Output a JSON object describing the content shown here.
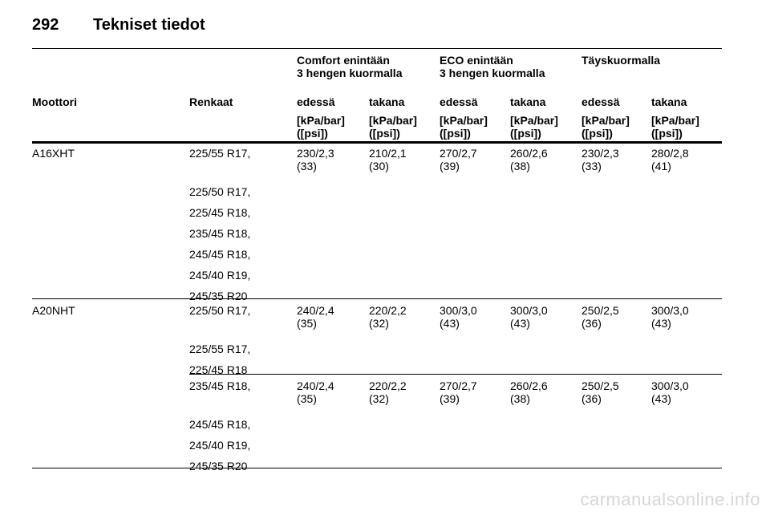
{
  "header": {
    "page_number": "292",
    "title": "Tekniset tiedot"
  },
  "table": {
    "groups": [
      {
        "line1": "Comfort enintään",
        "line2": "3 hengen kuormalla"
      },
      {
        "line1": "ECO enintään",
        "line2": "3 hengen kuormalla"
      },
      {
        "line1": "Täyskuormalla",
        "line2": ""
      }
    ],
    "col_engine": "Moottori",
    "col_tyres": "Renkaat",
    "col_front": "edessä",
    "col_rear": "takana",
    "unit_line1": "[kPa/bar]",
    "unit_line2": "([psi])",
    "rows": [
      {
        "engine": "A16XHT",
        "tyres": [
          "225/55 R17,",
          "225/50 R17,",
          "225/45 R18,",
          "235/45 R18,",
          "245/45 R18,",
          "245/40 R19,",
          "245/35 R20"
        ],
        "values": [
          [
            "230/2,3",
            "(33)"
          ],
          [
            "210/2,1",
            "(30)"
          ],
          [
            "270/2,7",
            "(39)"
          ],
          [
            "260/2,6",
            "(38)"
          ],
          [
            "230/2,3",
            "(33)"
          ],
          [
            "280/2,8",
            "(41)"
          ]
        ]
      },
      {
        "engine": "A20NHT",
        "tyres": [
          "225/50 R17,",
          "225/55 R17,",
          "225/45 R18"
        ],
        "values": [
          [
            "240/2,4",
            "(35)"
          ],
          [
            "220/2,2",
            "(32)"
          ],
          [
            "300/3,0",
            "(43)"
          ],
          [
            "300/3,0",
            "(43)"
          ],
          [
            "250/2,5",
            "(36)"
          ],
          [
            "300/3,0",
            "(43)"
          ]
        ]
      },
      {
        "engine": "",
        "tyres": [
          "235/45 R18,",
          "245/45 R18,",
          "245/40 R19,",
          "245/35 R20"
        ],
        "values": [
          [
            "240/2,4",
            "(35)"
          ],
          [
            "220/2,2",
            "(32)"
          ],
          [
            "270/2,7",
            "(39)"
          ],
          [
            "260/2,6",
            "(38)"
          ],
          [
            "250/2,5",
            "(36)"
          ],
          [
            "300/3,0",
            "(43)"
          ]
        ]
      }
    ]
  },
  "watermark": "carmanualsonline.info"
}
